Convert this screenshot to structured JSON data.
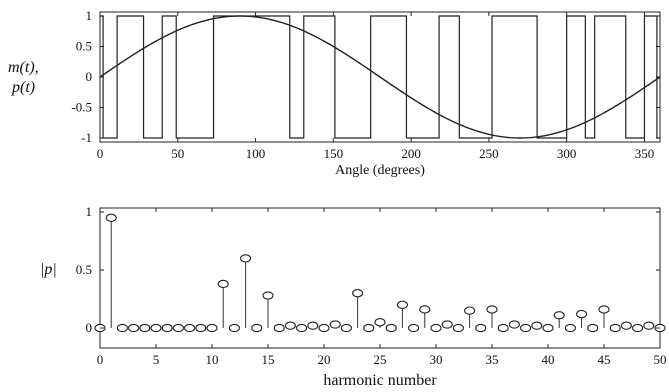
{
  "chart_data": [
    {
      "type": "line",
      "ylabel_lines": [
        "m(t),",
        "p(t)"
      ],
      "xlabel": "Angle (degrees)",
      "xlim": [
        0,
        360
      ],
      "ylim": [
        -1,
        1
      ],
      "x_ticks": [
        0,
        50,
        100,
        150,
        200,
        250,
        300,
        350
      ],
      "y_ticks": [
        -1,
        -0.5,
        0,
        0.5,
        1
      ],
      "y_tick_labels": [
        "-1",
        "-0.5",
        "0",
        "0.5",
        "1"
      ],
      "grid": false,
      "series": [
        {
          "kind": "sine",
          "x_range": [
            0,
            360
          ],
          "amplitude": 1
        },
        {
          "kind": "pwm",
          "transitions": [
            2,
            11,
            28,
            40,
            49,
            73,
            122,
            131,
            151,
            174,
            197,
            218,
            231,
            252,
            281,
            300,
            312,
            318,
            338,
            350,
            358
          ],
          "levels": [
            1,
            -1,
            1,
            -1,
            1,
            -1,
            1,
            -1,
            1,
            -1,
            1,
            -1,
            1,
            -1,
            1,
            -1,
            1,
            -1,
            1,
            -1,
            1,
            -1
          ]
        }
      ]
    },
    {
      "type": "stem",
      "ylabel": "|p|",
      "xlabel": "harmonic number",
      "xlim": [
        0,
        50
      ],
      "ylim": [
        0,
        1
      ],
      "x_ticks": [
        0,
        5,
        10,
        15,
        20,
        25,
        30,
        35,
        40,
        45,
        50
      ],
      "y_ticks": [
        0,
        0.5,
        1
      ],
      "y_tick_labels": [
        "0",
        "0.5",
        "1"
      ],
      "grid": false,
      "x": [
        0,
        1,
        2,
        3,
        4,
        5,
        6,
        7,
        8,
        9,
        10,
        11,
        12,
        13,
        14,
        15,
        16,
        17,
        18,
        19,
        20,
        21,
        22,
        23,
        24,
        25,
        26,
        27,
        28,
        29,
        30,
        31,
        32,
        33,
        34,
        35,
        36,
        37,
        38,
        39,
        40,
        41,
        42,
        43,
        44,
        45,
        46,
        47,
        48,
        49,
        50
      ],
      "values": [
        0,
        0.95,
        0,
        0,
        0,
        0,
        0,
        0,
        0,
        0,
        0,
        0.38,
        0,
        0.6,
        0,
        0.28,
        0,
        0.02,
        0,
        0.02,
        0,
        0.03,
        0,
        0.3,
        0,
        0.05,
        0,
        0.2,
        0,
        0.16,
        0,
        0.03,
        0,
        0.15,
        0,
        0.16,
        0,
        0.03,
        0,
        0.02,
        0,
        0.11,
        0,
        0.12,
        0,
        0.16,
        0,
        0.02,
        0,
        0.02,
        0
      ]
    }
  ]
}
